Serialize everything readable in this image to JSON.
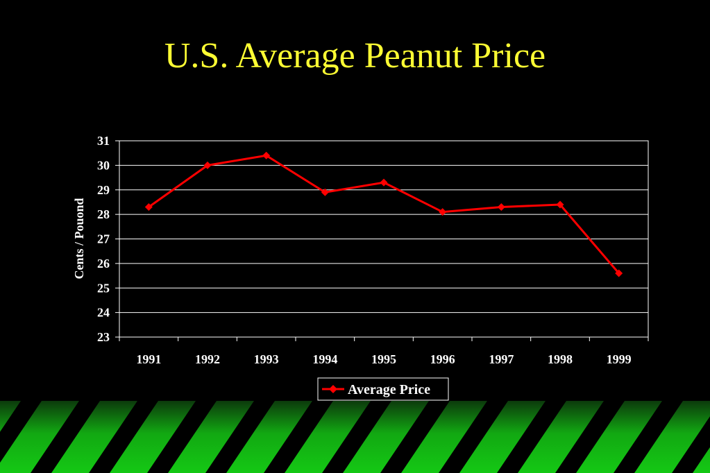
{
  "slide": {
    "title": "U.S. Average Peanut Price"
  },
  "colors": {
    "background": "#000000",
    "title": "#ffff33",
    "series": "#ff0000",
    "grid": "#ffffff",
    "stripe_green": "#14c814",
    "stripe_dark": "#000000"
  },
  "chart_data": {
    "type": "line",
    "title": "",
    "xlabel": "",
    "ylabel": "Cents / Pouond",
    "categories": [
      "1991",
      "1992",
      "1993",
      "1994",
      "1995",
      "1996",
      "1997",
      "1998",
      "1999"
    ],
    "ylim": [
      23,
      31
    ],
    "yticks": [
      "23",
      "24",
      "25",
      "26",
      "27",
      "28",
      "29",
      "30",
      "31"
    ],
    "grid": true,
    "legend_position": "bottom",
    "series": [
      {
        "name": "Average Price",
        "marker": "diamond",
        "values": [
          28.3,
          30.0,
          30.4,
          28.9,
          29.3,
          28.1,
          28.3,
          28.4,
          25.6
        ]
      }
    ]
  }
}
